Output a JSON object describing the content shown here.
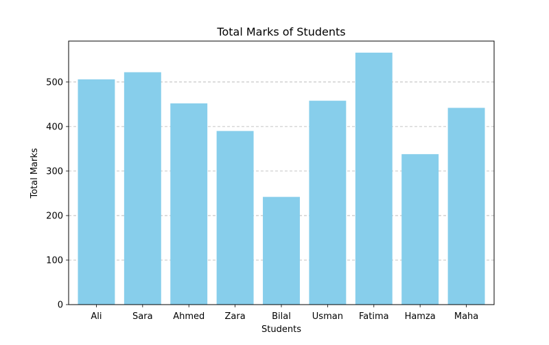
{
  "chart_data": {
    "type": "bar",
    "title": "Total Marks of Students",
    "xlabel": "Students",
    "ylabel": "Total Marks",
    "categories": [
      "Ali",
      "Sara",
      "Ahmed",
      "Zara",
      "Bilal",
      "Usman",
      "Fatima",
      "Hamza",
      "Maha"
    ],
    "values": [
      506,
      522,
      452,
      390,
      242,
      458,
      566,
      338,
      442
    ],
    "ylim": [
      0,
      592
    ],
    "yticks": [
      0,
      100,
      200,
      300,
      400,
      500
    ],
    "grid": "y-dashed",
    "bar_color": "#87CEEB",
    "grid_color": "#b0b0b0"
  }
}
